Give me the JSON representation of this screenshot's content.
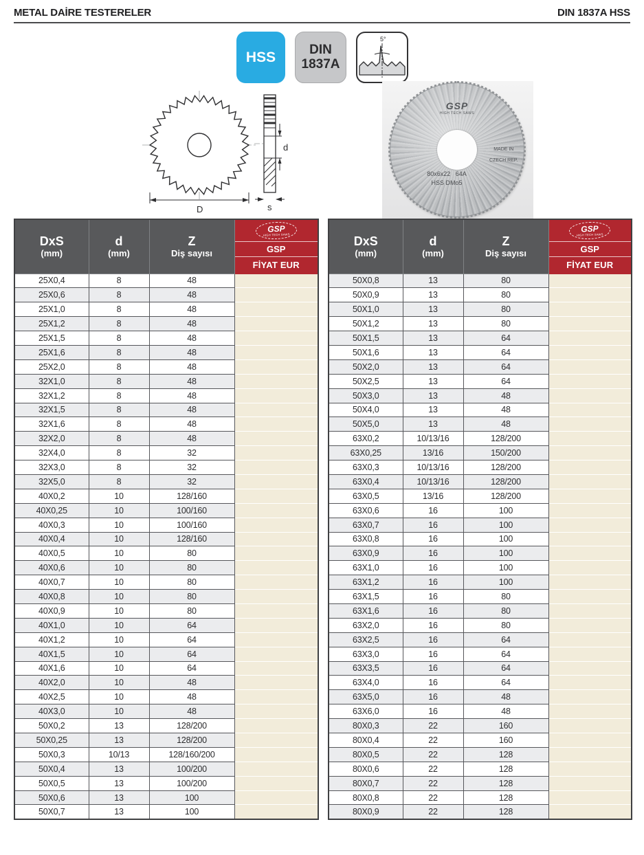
{
  "header": {
    "title_left": "METAL DAİRE TESTERELER",
    "title_right": "DIN 1837A HSS"
  },
  "badges": {
    "hss_label": "HSS",
    "din_label_line1": "DIN",
    "din_label_line2": "1837A",
    "tooth_angle_label": "5°"
  },
  "diagram": {
    "diameter_label": "D",
    "thickness_label": "s",
    "bore_label": "d"
  },
  "photo": {
    "brand": "GSP",
    "brand_subtitle": "HIGH TECH SAWS",
    "made_in_line1": "MADE IN",
    "made_in_line2": "CZECH REP.",
    "marking_size": "80x6x22   64A",
    "marking_material": "HSS DMo5"
  },
  "table_header": {
    "col_dxs_line1": "DxS",
    "col_dxs_line2": "(mm)",
    "col_d_line1": "d",
    "col_d_line2": "(mm)",
    "col_z_line1": "Z",
    "col_z_line2": "Diş sayısı",
    "gsp_logo_text": "GSP",
    "gsp_logo_subtext": "HIGH TECH SAWS",
    "gsp_brand": "GSP",
    "price_label": "FİYAT EUR"
  },
  "colors": {
    "accent_red": "#b1272f",
    "header_gray": "#58595b",
    "hss_blue": "#29abe2",
    "din_gray": "#c6c7c9",
    "price_beige": "#f2ecda",
    "row_alt_gray": "#ebecee"
  },
  "tables": [
    {
      "name": "left",
      "first_row_shade": "white",
      "shade_flip_after_row": 13,
      "rows": [
        [
          "25X0,4",
          "8",
          "48"
        ],
        [
          "25X0,6",
          "8",
          "48"
        ],
        [
          "25X1,0",
          "8",
          "48"
        ],
        [
          "25X1,2",
          "8",
          "48"
        ],
        [
          "25X1,5",
          "8",
          "48"
        ],
        [
          "25X1,6",
          "8",
          "48"
        ],
        [
          "25X2,0",
          "8",
          "48"
        ],
        [
          "32X1,0",
          "8",
          "48"
        ],
        [
          "32X1,2",
          "8",
          "48"
        ],
        [
          "32X1,5",
          "8",
          "48"
        ],
        [
          "32X1,6",
          "8",
          "48"
        ],
        [
          "32X2,0",
          "8",
          "48"
        ],
        [
          "32X4,0",
          "8",
          "32"
        ],
        [
          "32X3,0",
          "8",
          "32"
        ],
        [
          "32X5,0",
          "8",
          "32"
        ],
        [
          "40X0,2",
          "10",
          "128/160"
        ],
        [
          "40X0,25",
          "10",
          "100/160"
        ],
        [
          "40X0,3",
          "10",
          "100/160"
        ],
        [
          "40X0,4",
          "10",
          "128/160"
        ],
        [
          "40X0,5",
          "10",
          "80"
        ],
        [
          "40X0,6",
          "10",
          "80"
        ],
        [
          "40X0,7",
          "10",
          "80"
        ],
        [
          "40X0,8",
          "10",
          "80"
        ],
        [
          "40X0,9",
          "10",
          "80"
        ],
        [
          "40X1,0",
          "10",
          "64"
        ],
        [
          "40X1,2",
          "10",
          "64"
        ],
        [
          "40X1,5",
          "10",
          "64"
        ],
        [
          "40X1,6",
          "10",
          "64"
        ],
        [
          "40X2,0",
          "10",
          "48"
        ],
        [
          "40X2,5",
          "10",
          "48"
        ],
        [
          "40X3,0",
          "10",
          "48"
        ],
        [
          "50X0,2",
          "13",
          "128/200"
        ],
        [
          "50X0,25",
          "13",
          "128/200"
        ],
        [
          "50X0,3",
          "10/13",
          "128/160/200"
        ],
        [
          "50X0,4",
          "13",
          "100/200"
        ],
        [
          "50X0,5",
          "13",
          "100/200"
        ],
        [
          "50X0,6",
          "13",
          "100"
        ],
        [
          "50X0,7",
          "13",
          "100"
        ]
      ]
    },
    {
      "name": "right",
      "first_row_shade": "gray",
      "shade_flip_after_row": 16,
      "rows": [
        [
          "50X0,8",
          "13",
          "80"
        ],
        [
          "50X0,9",
          "13",
          "80"
        ],
        [
          "50X1,0",
          "13",
          "80"
        ],
        [
          "50X1,2",
          "13",
          "80"
        ],
        [
          "50X1,5",
          "13",
          "64"
        ],
        [
          "50X1,6",
          "13",
          "64"
        ],
        [
          "50X2,0",
          "13",
          "64"
        ],
        [
          "50X2,5",
          "13",
          "64"
        ],
        [
          "50X3,0",
          "13",
          "48"
        ],
        [
          "50X4,0",
          "13",
          "48"
        ],
        [
          "50X5,0",
          "13",
          "48"
        ],
        [
          "63X0,2",
          "10/13/16",
          "128/200"
        ],
        [
          "63X0,25",
          "13/16",
          "150/200"
        ],
        [
          "63X0,3",
          "10/13/16",
          "128/200"
        ],
        [
          "63X0,4",
          "10/13/16",
          "128/200"
        ],
        [
          "63X0,5",
          "13/16",
          "128/200"
        ],
        [
          "63X0,6",
          "16",
          "100"
        ],
        [
          "63X0,7",
          "16",
          "100"
        ],
        [
          "63X0,8",
          "16",
          "100"
        ],
        [
          "63X0,9",
          "16",
          "100"
        ],
        [
          "63X1,0",
          "16",
          "100"
        ],
        [
          "63X1,2",
          "16",
          "100"
        ],
        [
          "63X1,5",
          "16",
          "80"
        ],
        [
          "63X1,6",
          "16",
          "80"
        ],
        [
          "63X2,0",
          "16",
          "80"
        ],
        [
          "63X2,5",
          "16",
          "64"
        ],
        [
          "63X3,0",
          "16",
          "64"
        ],
        [
          "63X3,5",
          "16",
          "64"
        ],
        [
          "63X4,0",
          "16",
          "64"
        ],
        [
          "63X5,0",
          "16",
          "48"
        ],
        [
          "63X6,0",
          "16",
          "48"
        ],
        [
          "80X0,3",
          "22",
          "160"
        ],
        [
          "80X0,4",
          "22",
          "160"
        ],
        [
          "80X0,5",
          "22",
          "128"
        ],
        [
          "80X0,6",
          "22",
          "128"
        ],
        [
          "80X0,7",
          "22",
          "128"
        ],
        [
          "80X0,8",
          "22",
          "128"
        ],
        [
          "80X0,9",
          "22",
          "128"
        ]
      ]
    }
  ]
}
